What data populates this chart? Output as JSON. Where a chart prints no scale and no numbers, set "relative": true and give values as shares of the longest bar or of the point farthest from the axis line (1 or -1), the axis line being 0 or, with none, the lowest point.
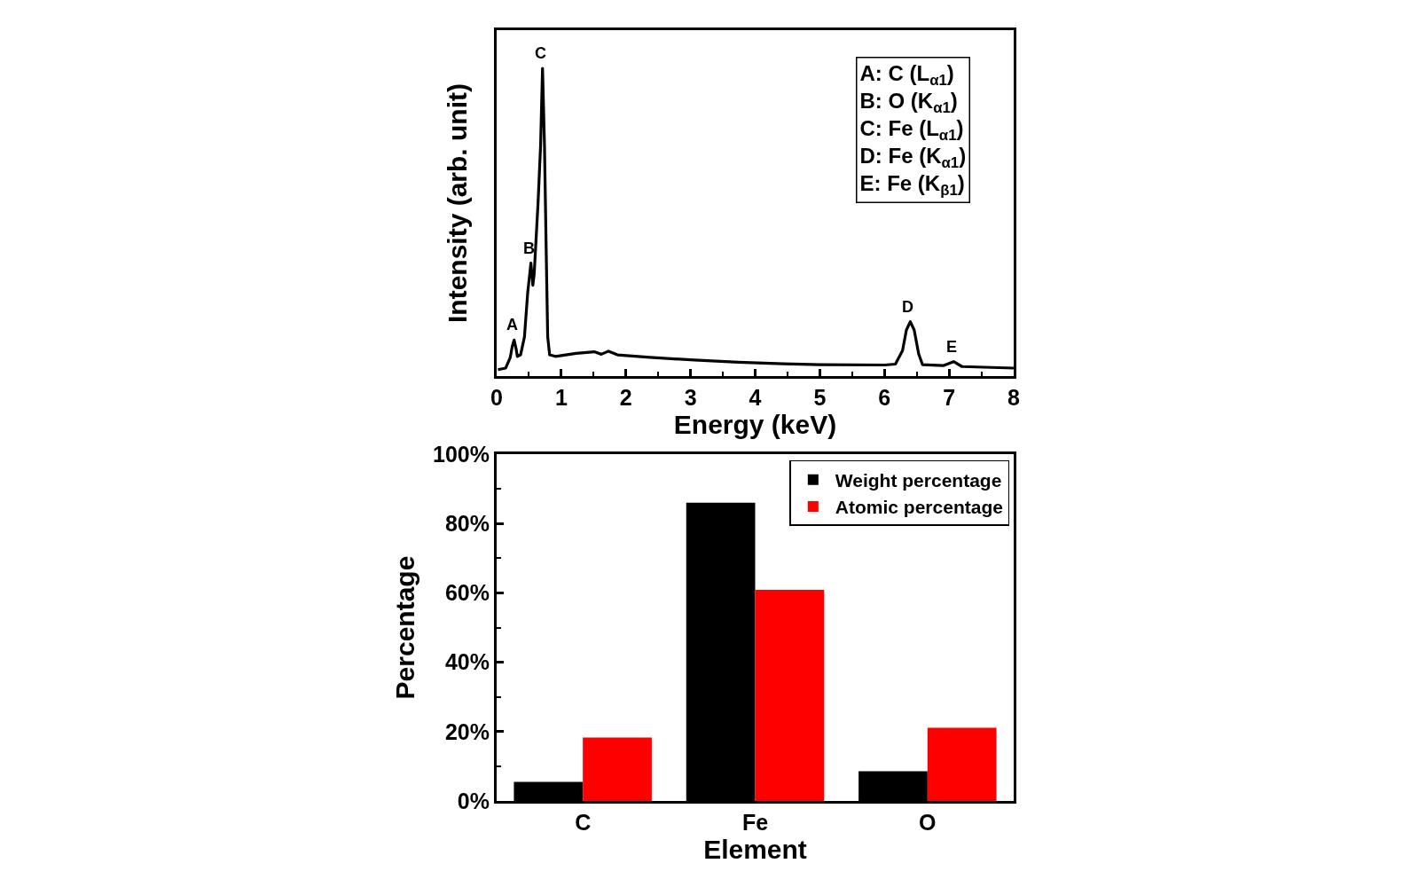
{
  "chart_data": [
    {
      "type": "line",
      "xlabel": "Energy (keV)",
      "ylabel": "Intensity (arb. unit)",
      "relative": true,
      "tick_labels": "x",
      "x": [
        0.02,
        0.14,
        0.21,
        0.24,
        0.27,
        0.3,
        0.32,
        0.37,
        0.43,
        0.48,
        0.53,
        0.56,
        0.58,
        0.64,
        0.68,
        0.71,
        0.74,
        0.77,
        0.79,
        0.82,
        0.91,
        1.23,
        1.51,
        1.62,
        1.73,
        1.87,
        2.37,
        3.06,
        3.74,
        4.43,
        5.0,
        6.0,
        6.17,
        6.28,
        6.34,
        6.4,
        6.46,
        6.53,
        6.59,
        6.91,
        7.07,
        7.2,
        8.0
      ],
      "series": [
        {
          "color": "#000000",
          "values": [
            0.021,
            0.026,
            0.06,
            0.095,
            0.117,
            0.09,
            0.064,
            0.069,
            0.127,
            0.27,
            0.367,
            0.295,
            0.33,
            0.56,
            0.75,
            1.0,
            0.75,
            0.367,
            0.127,
            0.069,
            0.064,
            0.074,
            0.079,
            0.071,
            0.081,
            0.069,
            0.061,
            0.052,
            0.045,
            0.04,
            0.037,
            0.036,
            0.039,
            0.083,
            0.15,
            0.177,
            0.15,
            0.072,
            0.037,
            0.034,
            0.047,
            0.031,
            0.026
          ]
        }
      ],
      "xlim": [
        0,
        8
      ],
      "xticks": [
        0,
        {
          "value": 0.5,
          "label": null
        },
        1,
        {
          "value": 1.5,
          "label": null
        },
        2,
        {
          "value": 2.5,
          "label": null
        },
        3,
        {
          "value": 3.5,
          "label": null
        },
        4,
        {
          "value": 4.5,
          "label": null
        },
        5,
        {
          "value": 5.5,
          "label": null
        },
        6,
        {
          "value": 6.5,
          "label": null
        },
        7,
        {
          "value": 7.5,
          "label": null
        },
        8
      ],
      "annotations": [
        {
          "text": "A",
          "x": 0.27,
          "y": 0.117
        },
        {
          "text": "B",
          "x": 0.53,
          "y": 0.367
        },
        {
          "text": "C",
          "x": 0.71,
          "y": 1.0
        },
        {
          "text": "D",
          "x": 6.4,
          "y": 0.177
        },
        {
          "text": "E",
          "x": 7.07,
          "y": 0.047
        },
        "A: C (L$_{α1}$)",
        "B: O (K$_{α1}$)",
        "C: Fe (L$_{α1}$)",
        "D: Fe (K$_{α1}$)",
        "E: Fe (K$_{β1}$)"
      ]
    },
    {
      "type": "bar",
      "xlabel": "Element",
      "ylabel": "Percentage",
      "categories": [
        "C",
        "Fe",
        "O"
      ],
      "series": [
        {
          "name": "Weight percentage",
          "color": "#000000",
          "values": [
            5.5,
            86.0,
            8.6
          ]
        },
        {
          "name": "Atomic percentage",
          "color": "#ff0000",
          "values": [
            18.3,
            60.9,
            21.1
          ]
        }
      ],
      "ylim": [
        0,
        100
      ],
      "yticks": [
        {
          "value": 0,
          "label": "0%"
        },
        {
          "value": 10,
          "label": null
        },
        {
          "value": 20,
          "label": "20%"
        },
        {
          "value": 30,
          "label": null
        },
        {
          "value": 40,
          "label": "40%"
        },
        {
          "value": 50,
          "label": null
        },
        {
          "value": 60,
          "label": "60%"
        },
        {
          "value": 70,
          "label": null
        },
        {
          "value": 80,
          "label": "80%"
        },
        {
          "value": 90,
          "label": null
        },
        {
          "value": 100,
          "label": "100%"
        }
      ],
      "legend": "top right"
    }
  ]
}
